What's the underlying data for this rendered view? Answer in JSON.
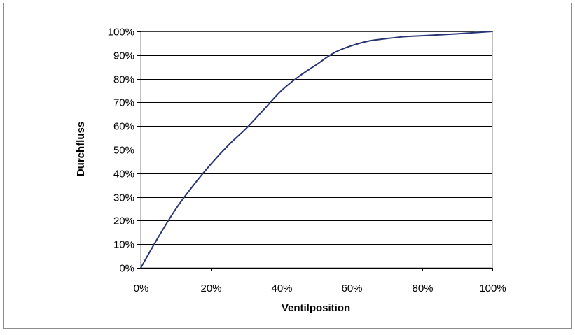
{
  "chart_data": {
    "type": "line",
    "xlabel": "Ventilposition",
    "ylabel": "Durchfluss",
    "xlim": [
      0,
      100
    ],
    "ylim": [
      0,
      100
    ],
    "x_ticks": [
      "0%",
      "20%",
      "40%",
      "60%",
      "80%",
      "100%"
    ],
    "y_ticks": [
      "0%",
      "10%",
      "20%",
      "30%",
      "40%",
      "50%",
      "60%",
      "70%",
      "80%",
      "90%",
      "100%"
    ],
    "grid": {
      "horizontal": true,
      "vertical": false
    },
    "legend": "none",
    "series": [
      {
        "x": [
          0,
          5,
          10,
          15,
          20,
          25,
          30,
          35,
          40,
          45,
          50,
          55,
          60,
          65,
          70,
          75,
          80,
          90,
          100
        ],
        "values": [
          0,
          13,
          25,
          35,
          44,
          52,
          59,
          67,
          75,
          81,
          86,
          91,
          94,
          96,
          97,
          97.8,
          98.2,
          99,
          100
        ],
        "color": "#283573"
      }
    ]
  },
  "colors": {
    "line": "#283573",
    "axis": "#000000",
    "grid": "#000000",
    "frame": "#8c8c8c",
    "plot_border": "#808080"
  }
}
